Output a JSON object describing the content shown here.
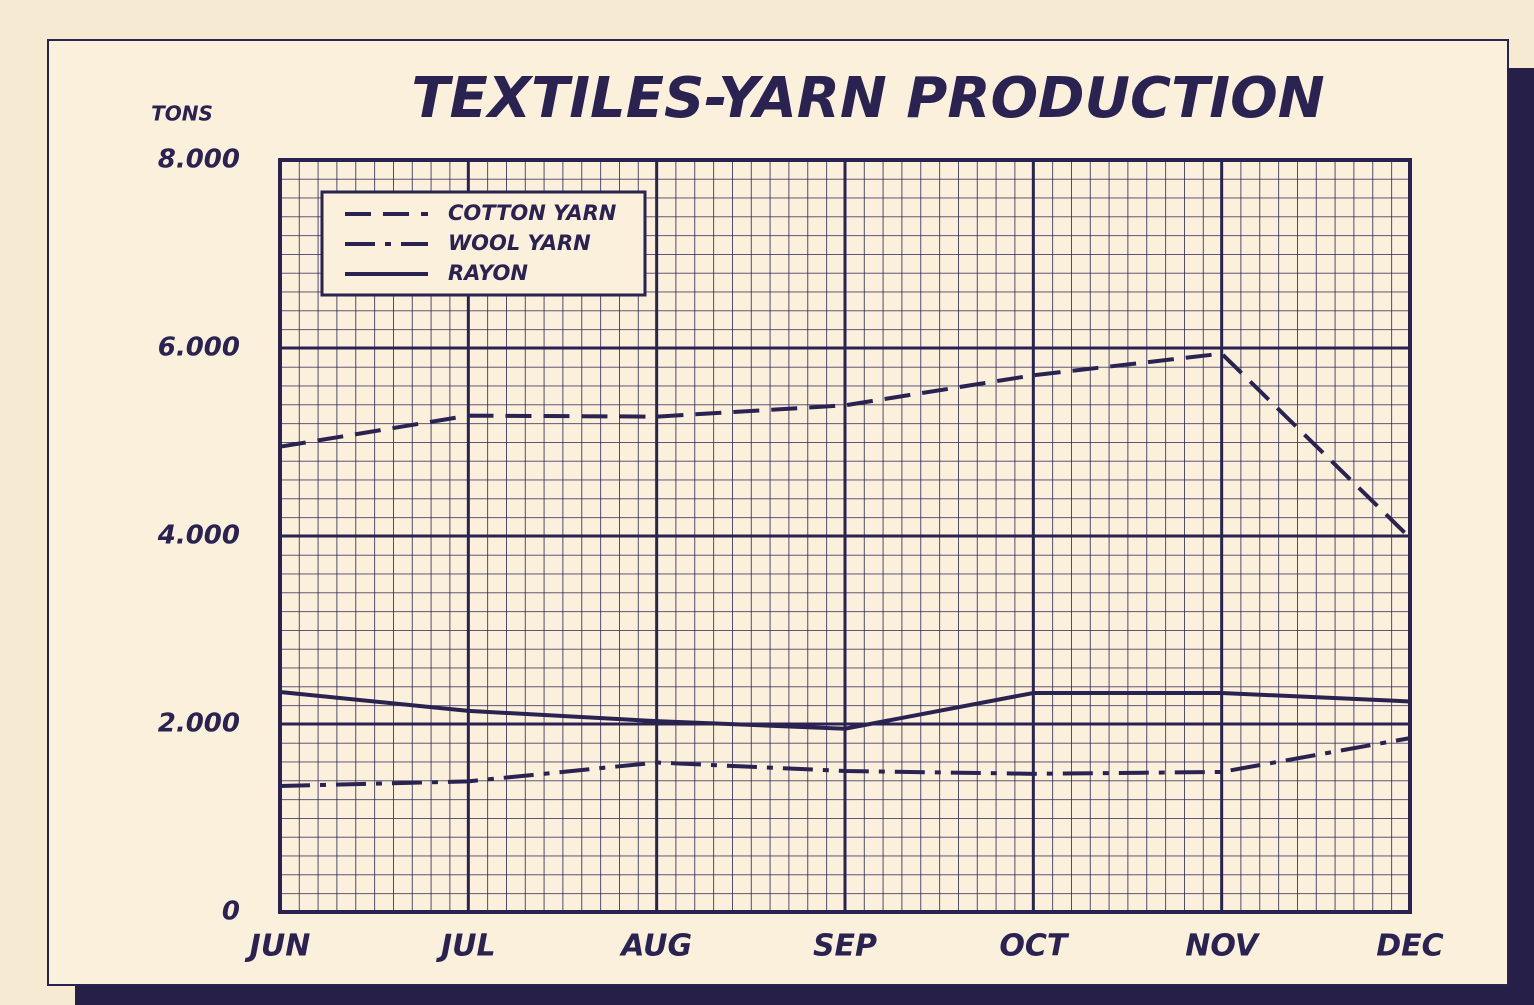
{
  "chart_data": {
    "type": "line",
    "title": "TEXTILES-YARN PRODUCTION",
    "y_label": "TONS",
    "categories": [
      "JUN",
      "JUL",
      "AUG",
      "SEP",
      "OCT",
      "NOV",
      "DEC"
    ],
    "series": [
      {
        "name": "COTTON YARN",
        "color": "#2a2250",
        "style": "dashed",
        "values": [
          4950,
          5280,
          5270,
          5390,
          5710,
          5940,
          3980
        ]
      },
      {
        "name": "WOOL YARN",
        "color": "#2a2250",
        "style": "dashdot",
        "values": [
          1340,
          1390,
          1590,
          1500,
          1470,
          1490,
          1850
        ]
      },
      {
        "name": "RAYON",
        "color": "#2a2250",
        "style": "solid",
        "values": [
          2340,
          2140,
          2030,
          1950,
          2330,
          2330,
          2240
        ]
      }
    ],
    "ylim": [
      0,
      8000
    ],
    "yticks": [
      {
        "value": 0,
        "label": "0"
      },
      {
        "value": 2000,
        "label": "2.000"
      },
      {
        "value": 4000,
        "label": "4.000"
      },
      {
        "value": 6000,
        "label": "6.000"
      },
      {
        "value": 8000,
        "label": "8.000"
      }
    ],
    "grid": true,
    "legend": "upper left"
  }
}
